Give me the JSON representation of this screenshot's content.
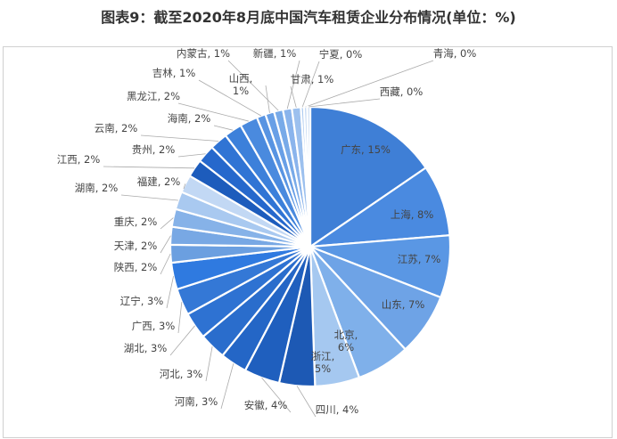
{
  "chart_data": {
    "type": "pie",
    "title": "图表9：截至2020年8月底中国汽车租赁企业分布情况(单位：%)",
    "unit": "%",
    "slices": [
      {
        "label": "广东",
        "value": 15,
        "color": "#3f7fd6"
      },
      {
        "label": "上海",
        "value": 8,
        "color": "#4a8ae0"
      },
      {
        "label": "江苏",
        "value": 7,
        "color": "#5a97e4"
      },
      {
        "label": "山东",
        "value": 7,
        "color": "#6ea3e6"
      },
      {
        "label": "北京",
        "value": 6,
        "color": "#7fb0ea"
      },
      {
        "label": "浙江",
        "value": 5,
        "color": "#a5c8f0"
      },
      {
        "label": "四川",
        "value": 4,
        "color": "#1d59b4"
      },
      {
        "label": "安徽",
        "value": 4,
        "color": "#1f5fbe"
      },
      {
        "label": "河南",
        "value": 3,
        "color": "#2466c6"
      },
      {
        "label": "河北",
        "value": 3,
        "color": "#2a6dcc"
      },
      {
        "label": "湖北",
        "value": 3,
        "color": "#2e72d2"
      },
      {
        "label": "广西",
        "value": 3,
        "color": "#3478d6"
      },
      {
        "label": "辽宁",
        "value": 3,
        "color": "#2f7ae0"
      },
      {
        "label": "陕西",
        "value": 2,
        "color": "#6b9fe0"
      },
      {
        "label": "天津",
        "value": 2,
        "color": "#78a8e4"
      },
      {
        "label": "重庆",
        "value": 2,
        "color": "#86b2e8"
      },
      {
        "label": "湖南",
        "value": 2,
        "color": "#a9c9f0"
      },
      {
        "label": "福建",
        "value": 2,
        "color": "#c2d8f4"
      },
      {
        "label": "江西",
        "value": 2,
        "color": "#1d5cbc"
      },
      {
        "label": "贵州",
        "value": 2,
        "color": "#2668cc"
      },
      {
        "label": "云南",
        "value": 2,
        "color": "#3074d4"
      },
      {
        "label": "海南",
        "value": 2,
        "color": "#3c80da"
      },
      {
        "label": "黑龙江",
        "value": 2,
        "color": "#4a8ade"
      },
      {
        "label": "吉林",
        "value": 1,
        "color": "#5894e2"
      },
      {
        "label": "山西",
        "value": 1,
        "color": "#689fe6"
      },
      {
        "label": "内蒙古",
        "value": 1,
        "color": "#78aae8"
      },
      {
        "label": "新疆",
        "value": 1,
        "color": "#8ab4ec"
      },
      {
        "label": "甘肃",
        "value": 1,
        "color": "#9cc0ee"
      },
      {
        "label": "宁夏",
        "value": 0,
        "color": "#aecbf0"
      },
      {
        "label": "青海",
        "value": 0,
        "color": "#c0d6f2"
      },
      {
        "label": "西藏",
        "value": 0,
        "color": "#d0e0f4"
      }
    ],
    "legend": "none",
    "data_labels": "category, value%"
  }
}
